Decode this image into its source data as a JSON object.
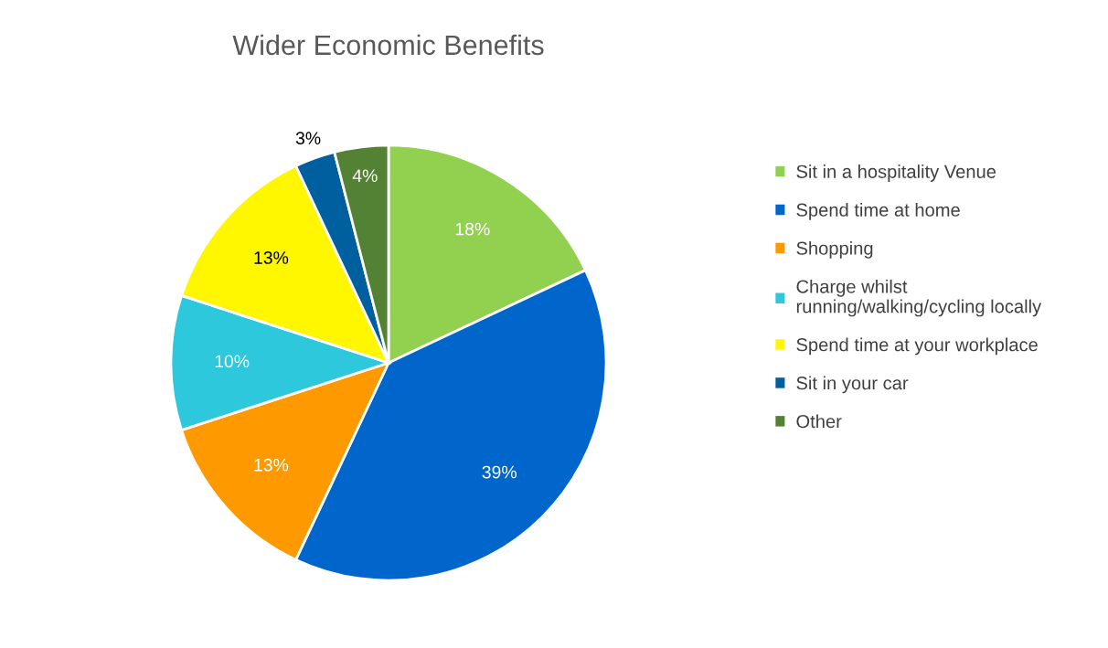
{
  "chart_data": {
    "type": "pie",
    "title": "Wider Economic Benefits",
    "categories": [
      "Sit in a hospitality Venue",
      "Spend time at home",
      "Shopping",
      "Charge whilst\nrunning/walking/cycling locally",
      "Spend time at your workplace",
      "Sit in your car",
      "Other"
    ],
    "values": [
      18,
      39,
      13,
      10,
      13,
      3,
      4
    ],
    "colors": [
      "#92d050",
      "#0066cc",
      "#ff9900",
      "#2ec8dc",
      "#fff700",
      "#005f9e",
      "#548235"
    ],
    "value_labels": [
      "18%",
      "39%",
      "13%",
      "10%",
      "13%",
      "3%",
      "4%"
    ],
    "legend": "right"
  }
}
